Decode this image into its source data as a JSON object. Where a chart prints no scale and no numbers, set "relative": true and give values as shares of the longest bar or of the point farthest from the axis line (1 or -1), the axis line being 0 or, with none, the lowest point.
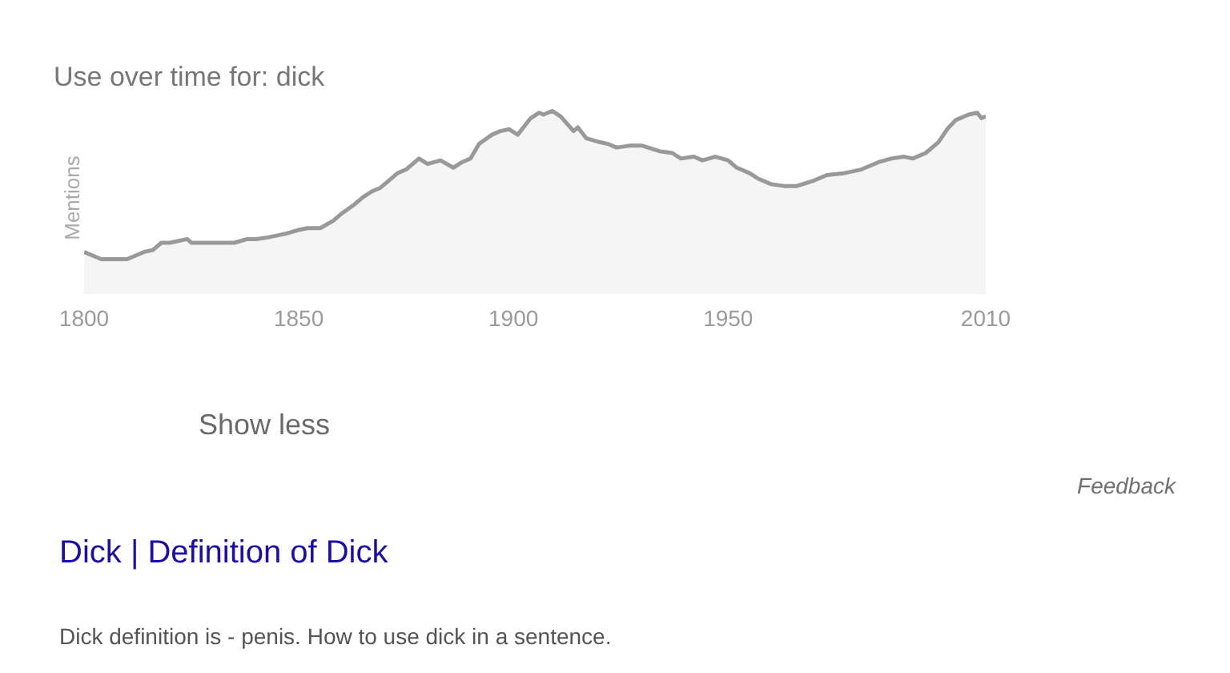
{
  "chart_data": {
    "type": "area",
    "title": "Use over time for: dick",
    "ylabel": "Mentions",
    "relative": true,
    "x": [
      1800,
      1802,
      1804,
      1807,
      1810,
      1812,
      1814,
      1816,
      1818,
      1820,
      1824,
      1825,
      1828,
      1832,
      1835,
      1838,
      1840,
      1843,
      1847,
      1850,
      1852,
      1855,
      1858,
      1860,
      1863,
      1865,
      1867,
      1869,
      1871,
      1873,
      1875,
      1878,
      1880,
      1883,
      1886,
      1888,
      1890,
      1892,
      1895,
      1897,
      1899,
      1901,
      1904,
      1906,
      1907,
      1909,
      1911,
      1914,
      1915,
      1917,
      1920,
      1922,
      1924,
      1927,
      1930,
      1934,
      1937,
      1939,
      1942,
      1944,
      1947,
      1950,
      1952,
      1955,
      1957,
      1960,
      1963,
      1966,
      1970,
      1973,
      1977,
      1981,
      1985,
      1988,
      1991,
      1993,
      1996,
      1999,
      2001,
      2003,
      2006,
      2008,
      2009,
      2010
    ],
    "series": [
      {
        "color": "#999999",
        "values": [
          0.23,
          0.21,
          0.19,
          0.19,
          0.19,
          0.21,
          0.23,
          0.24,
          0.28,
          0.28,
          0.3,
          0.28,
          0.28,
          0.28,
          0.28,
          0.3,
          0.3,
          0.31,
          0.33,
          0.35,
          0.36,
          0.36,
          0.4,
          0.44,
          0.49,
          0.53,
          0.56,
          0.58,
          0.62,
          0.66,
          0.68,
          0.74,
          0.71,
          0.73,
          0.69,
          0.72,
          0.74,
          0.82,
          0.87,
          0.89,
          0.9,
          0.87,
          0.96,
          0.99,
          0.98,
          1.0,
          0.97,
          0.89,
          0.91,
          0.85,
          0.83,
          0.82,
          0.8,
          0.81,
          0.81,
          0.78,
          0.77,
          0.74,
          0.75,
          0.73,
          0.75,
          0.73,
          0.69,
          0.66,
          0.63,
          0.6,
          0.59,
          0.59,
          0.62,
          0.65,
          0.66,
          0.68,
          0.72,
          0.74,
          0.75,
          0.74,
          0.77,
          0.83,
          0.9,
          0.95,
          0.98,
          0.99,
          0.96,
          0.97
        ]
      }
    ],
    "xlim": [
      1800,
      2010
    ],
    "xticks": [
      1800,
      1850,
      1900,
      1950,
      2010
    ],
    "annotations": [
      "Show less",
      "Feedback",
      "Dick | Definition of Dick",
      "Dick definition is - penis. How to use dick in a sentence."
    ]
  }
}
